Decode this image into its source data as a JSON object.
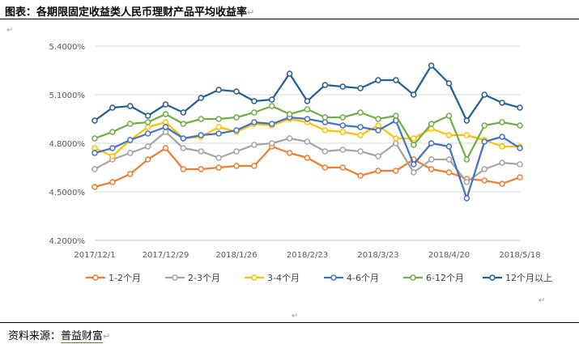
{
  "title": "图表：各期限固定收益类人民币理财产品平均收益率",
  "source_label": "资料来源：",
  "source_name": "普益财富",
  "chart_data": {
    "type": "line",
    "x": [
      "2017/12/1",
      "2017/12/8",
      "2017/12/15",
      "2017/12/22",
      "2017/12/29",
      "2018/1/5",
      "2018/1/12",
      "2018/1/19",
      "2018/1/26",
      "2018/2/2",
      "2018/2/9",
      "2018/2/16",
      "2018/2/23",
      "2018/3/2",
      "2018/3/9",
      "2018/3/16",
      "2018/3/23",
      "2018/3/30",
      "2018/4/6",
      "2018/4/13",
      "2018/4/20",
      "2018/4/27",
      "2018/5/4",
      "2018/5/11",
      "2018/5/18"
    ],
    "xtick_labels": [
      "2017/12/1",
      "2017/12/29",
      "2018/1/26",
      "2018/2/23",
      "2018/3/23",
      "2018/4/20",
      "2018/5/18"
    ],
    "ytick_labels": [
      "4.2000%",
      "4.5000%",
      "4.8000%",
      "5.1000%",
      "5.4000%"
    ],
    "ylim": [
      4.2,
      5.4
    ],
    "grid": true,
    "legend_position": "bottom",
    "series": [
      {
        "name": "1-2个月",
        "color": "#ED7D31",
        "values": [
          4.53,
          4.56,
          4.61,
          4.7,
          4.77,
          4.64,
          4.64,
          4.65,
          4.66,
          4.66,
          4.78,
          4.74,
          4.71,
          4.65,
          4.65,
          4.6,
          4.63,
          4.63,
          4.7,
          4.64,
          4.62,
          4.58,
          4.57,
          4.55,
          4.59
        ]
      },
      {
        "name": "2-3个月",
        "color": "#A5A5A5",
        "values": [
          4.64,
          4.7,
          4.74,
          4.78,
          4.87,
          4.77,
          4.75,
          4.71,
          4.75,
          4.79,
          4.8,
          4.83,
          4.81,
          4.75,
          4.76,
          4.75,
          4.72,
          4.8,
          4.62,
          4.7,
          4.7,
          4.56,
          4.64,
          4.68,
          4.67
        ]
      },
      {
        "name": "3-4个月",
        "color": "#FFC000",
        "values": [
          4.77,
          4.72,
          4.82,
          4.9,
          4.93,
          4.83,
          4.84,
          4.9,
          4.87,
          4.92,
          4.91,
          4.95,
          4.93,
          4.88,
          4.87,
          4.85,
          4.91,
          4.83,
          4.83,
          4.89,
          4.85,
          4.85,
          4.82,
          4.78,
          4.78
        ]
      },
      {
        "name": "4-6个月",
        "color": "#4472C4",
        "values": [
          4.74,
          4.77,
          4.82,
          4.86,
          4.9,
          4.83,
          4.85,
          4.86,
          4.88,
          4.93,
          4.92,
          4.96,
          4.95,
          4.93,
          4.91,
          4.9,
          4.88,
          4.94,
          4.67,
          4.8,
          4.78,
          4.46,
          4.81,
          4.84,
          4.77
        ]
      },
      {
        "name": "6-12个月",
        "color": "#70AD47",
        "values": [
          4.83,
          4.87,
          4.92,
          4.93,
          4.98,
          4.92,
          4.95,
          4.95,
          4.96,
          4.99,
          5.03,
          4.98,
          5.01,
          4.96,
          4.96,
          4.99,
          4.95,
          4.97,
          4.79,
          4.92,
          4.97,
          4.7,
          4.91,
          4.93,
          4.91
        ]
      },
      {
        "name": "12个月以上",
        "color": "#255E91",
        "values": [
          4.94,
          5.02,
          5.03,
          4.97,
          5.04,
          4.99,
          5.08,
          5.13,
          5.12,
          5.06,
          5.07,
          5.23,
          5.06,
          5.16,
          5.15,
          5.14,
          5.19,
          5.19,
          5.1,
          5.28,
          5.17,
          4.94,
          5.1,
          5.05,
          5.02
        ]
      }
    ]
  }
}
